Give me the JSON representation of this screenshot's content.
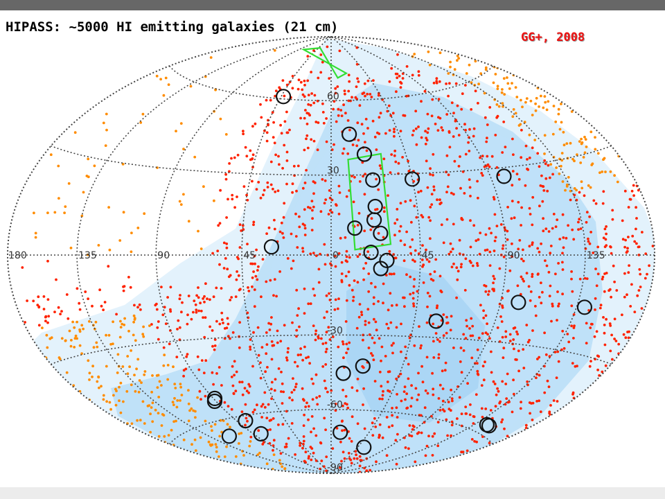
{
  "title": "HIPASS: ~5000 HI emitting galaxies (21 cm)",
  "credit": "GG+, 2008",
  "colors": {
    "background": "#ffffff",
    "coverage_light": "#e3f2fc",
    "coverage_mid": "#bfe1f8",
    "coverage_dark": "#86c4ee",
    "galaxy_inside": "#ff2200",
    "galaxy_outside": "#ff8c00",
    "circles": "#111111",
    "fields": "#33dd33",
    "grid": "#444444"
  },
  "chart_data": {
    "type": "scatter",
    "projection": "hammer-aitoff",
    "title": "HIPASS: ~5000 HI emitting galaxies (21 cm)",
    "xlabel": "",
    "ylabel": "",
    "xlim": [
      -180,
      180
    ],
    "ylim": [
      -90,
      90
    ],
    "grid": true,
    "longitude_ticks": [
      {
        "value": 180,
        "label": "180"
      },
      {
        "value": 135,
        "label": "135"
      },
      {
        "value": 90,
        "label": "90"
      },
      {
        "value": 45,
        "label": "45"
      },
      {
        "value": 0,
        "label": "0"
      },
      {
        "value": -45,
        "label": "45"
      },
      {
        "value": -90,
        "label": "90"
      },
      {
        "value": -135,
        "label": "135"
      }
    ],
    "latitude_ticks": [
      {
        "value": 60,
        "label": "60"
      },
      {
        "value": 30,
        "label": "30"
      },
      {
        "value": -30,
        "label": "-30"
      },
      {
        "value": -60,
        "label": "-60"
      },
      {
        "value": -90,
        "label": "-90"
      }
    ],
    "series": [
      {
        "kind": "points",
        "count_approx": 5000
      },
      {
        "kind": "circles",
        "points": [
          [
            43,
            61
          ],
          [
            -12,
            46
          ],
          [
            -20,
            38
          ],
          [
            -23,
            28
          ],
          [
            -23,
            18
          ],
          [
            -22,
            13
          ],
          [
            -25,
            8
          ],
          [
            -12,
            10
          ],
          [
            -20,
            1
          ],
          [
            -28,
            -2
          ],
          [
            -25,
            -5
          ],
          [
            -45,
            28
          ],
          [
            30,
            3
          ],
          [
            -98,
            27
          ],
          [
            -100,
            -16
          ],
          [
            -140,
            -16
          ],
          [
            -57,
            -24
          ],
          [
            -20,
            -42
          ],
          [
            -8,
            -45
          ],
          [
            -11,
            -70
          ],
          [
            -55,
            -76
          ],
          [
            -148,
            -57
          ],
          [
            -145,
            -57
          ],
          [
            82,
            -68
          ],
          [
            82,
            -62
          ],
          [
            91,
            -53
          ],
          [
            89,
            -52
          ],
          [
            117,
            -66
          ]
        ]
      },
      {
        "kind": "fields",
        "polygons": [
          [
            [
              40,
              84
            ],
            [
              80,
              82
            ],
            [
              -20,
              72
            ],
            [
              -8,
              70
            ]
          ],
          [
            [
              -10,
              36
            ],
            [
              -30,
              38
            ],
            [
              -30,
              4
            ],
            [
              -12,
              2
            ]
          ]
        ]
      }
    ]
  }
}
